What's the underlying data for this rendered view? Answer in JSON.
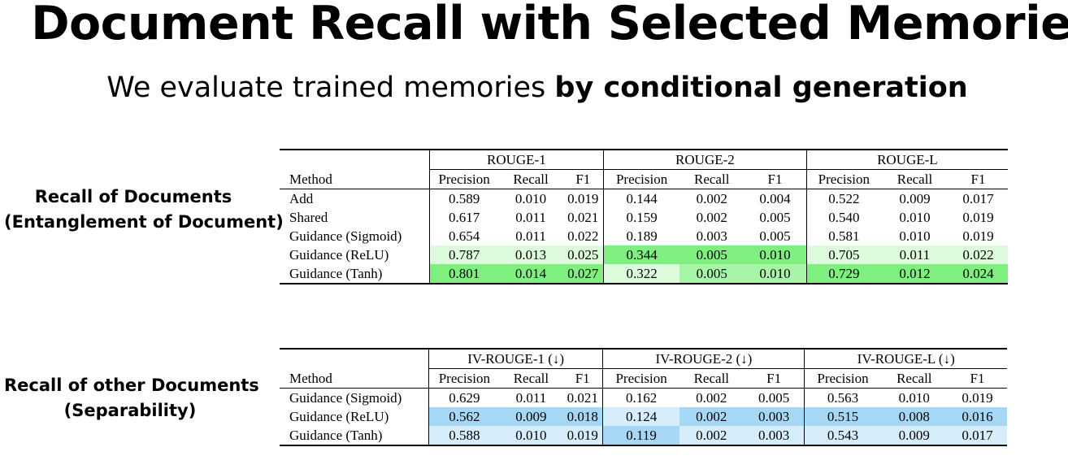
{
  "title": "Document Recall with Selected Memories",
  "subtitle": {
    "plain": "We evaluate trained memories ",
    "bold": "by conditional generation"
  },
  "section1": {
    "label_line1": "Recall of Documents",
    "label_line2": "(Entanglement of Document)"
  },
  "section2": {
    "label_line1": "Recall of other Documents",
    "label_line2": "(Separability)"
  },
  "colors": {
    "green_dark": "#7ff07f",
    "green_mid": "#a8f5a8",
    "green_light": "#dcfcdc",
    "blue_dark": "#a6d8f5",
    "blue_light": "#d6eefc"
  },
  "table1": {
    "groups": [
      "ROUGE-1",
      "ROUGE-2",
      "ROUGE-L"
    ],
    "method_header": "Method",
    "subheaders": [
      "Precision",
      "Recall",
      "F1",
      "Precision",
      "Recall",
      "F1",
      "Precision",
      "Recall",
      "F1"
    ],
    "rows": [
      {
        "method": "Add",
        "values": [
          "0.589",
          "0.010",
          "0.019",
          "0.144",
          "0.002",
          "0.004",
          "0.522",
          "0.009",
          "0.017"
        ],
        "shades": [
          "",
          "",
          "",
          "",
          "",
          "",
          "",
          "",
          ""
        ]
      },
      {
        "method": "Shared",
        "values": [
          "0.617",
          "0.011",
          "0.021",
          "0.159",
          "0.002",
          "0.005",
          "0.540",
          "0.010",
          "0.019"
        ],
        "shades": [
          "",
          "",
          "",
          "",
          "",
          "",
          "",
          "",
          ""
        ]
      },
      {
        "method": "Guidance (Sigmoid)",
        "values": [
          "0.654",
          "0.011",
          "0.022",
          "0.189",
          "0.003",
          "0.005",
          "0.581",
          "0.010",
          "0.019"
        ],
        "shades": [
          "",
          "",
          "",
          "",
          "",
          "",
          "",
          "",
          ""
        ]
      },
      {
        "method": "Guidance (ReLU)",
        "values": [
          "0.787",
          "0.013",
          "0.025",
          "0.344",
          "0.005",
          "0.010",
          "0.705",
          "0.011",
          "0.022"
        ],
        "shades": [
          "green_light",
          "green_light",
          "green_light",
          "green_dark",
          "green_dark",
          "green_dark",
          "green_light",
          "green_light",
          "green_light"
        ]
      },
      {
        "method": "Guidance (Tanh)",
        "values": [
          "0.801",
          "0.014",
          "0.027",
          "0.322",
          "0.005",
          "0.010",
          "0.729",
          "0.012",
          "0.024"
        ],
        "shades": [
          "green_dark",
          "green_dark",
          "green_dark",
          "green_light",
          "green_mid",
          "green_mid",
          "green_dark",
          "green_dark",
          "green_dark"
        ]
      }
    ]
  },
  "table2": {
    "groups": [
      "IV-ROUGE-1 (↓)",
      "IV-ROUGE-2 (↓)",
      "IV-ROUGE-L (↓)"
    ],
    "method_header": "Method",
    "subheaders": [
      "Precision",
      "Recall",
      "F1",
      "Precision",
      "Recall",
      "F1",
      "Precision",
      "Recall",
      "F1"
    ],
    "rows": [
      {
        "method": "Guidance (Sigmoid)",
        "values": [
          "0.629",
          "0.011",
          "0.021",
          "0.162",
          "0.002",
          "0.005",
          "0.563",
          "0.010",
          "0.019"
        ],
        "shades": [
          "",
          "",
          "",
          "",
          "",
          "",
          "",
          "",
          ""
        ]
      },
      {
        "method": "Guidance (ReLU)",
        "values": [
          "0.562",
          "0.009",
          "0.018",
          "0.124",
          "0.002",
          "0.003",
          "0.515",
          "0.008",
          "0.016"
        ],
        "shades": [
          "blue_dark",
          "blue_dark",
          "blue_dark",
          "blue_light",
          "blue_dark",
          "blue_dark",
          "blue_dark",
          "blue_dark",
          "blue_dark"
        ]
      },
      {
        "method": "Guidance (Tanh)",
        "values": [
          "0.588",
          "0.010",
          "0.019",
          "0.119",
          "0.002",
          "0.003",
          "0.543",
          "0.009",
          "0.017"
        ],
        "shades": [
          "blue_light",
          "blue_light",
          "blue_light",
          "blue_dark",
          "blue_light",
          "blue_light",
          "blue_light",
          "blue_light",
          "blue_light"
        ]
      }
    ]
  }
}
